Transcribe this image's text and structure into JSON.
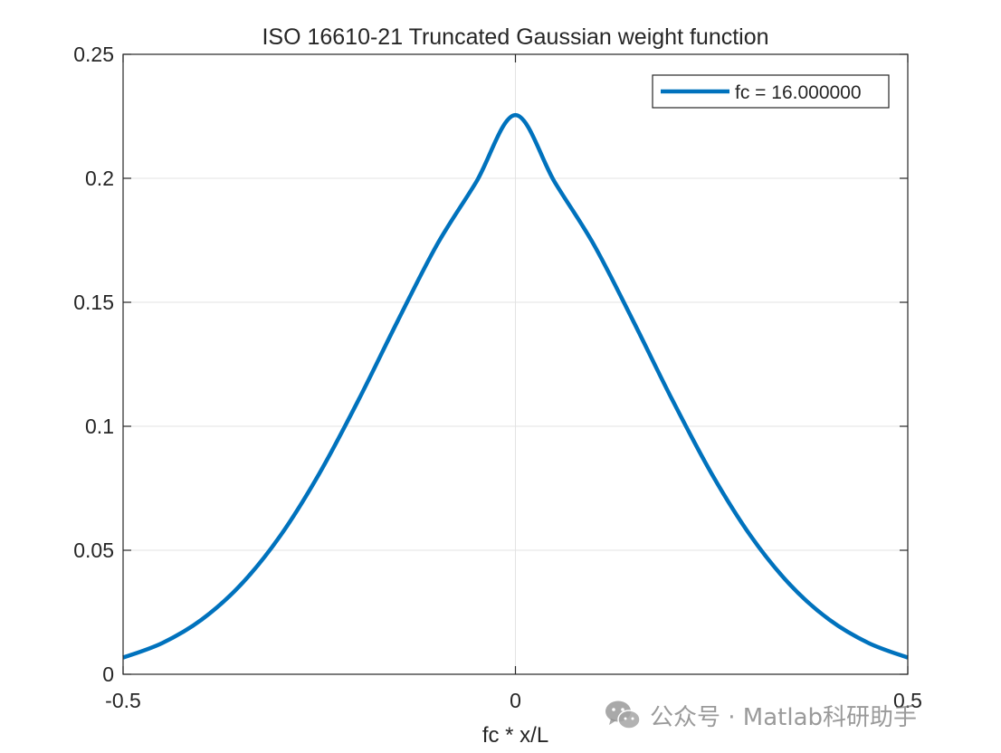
{
  "chart_data": {
    "type": "line",
    "title": "ISO 16610-21 Truncated Gaussian weight function",
    "xlabel": "fc * x/L",
    "ylabel": "",
    "xlim": [
      -0.5,
      0.5
    ],
    "ylim": [
      0,
      0.25
    ],
    "grid": true,
    "legend_location": "top-right",
    "x_ticks": [
      -0.5,
      0,
      0.5
    ],
    "x_tick_labels": [
      "-0.5",
      "0",
      "0.5"
    ],
    "y_ticks": [
      0,
      0.05,
      0.1,
      0.15,
      0.2,
      0.25
    ],
    "y_tick_labels": [
      "0",
      "0.05",
      "0.1",
      "0.15",
      "0.2",
      "0.25"
    ],
    "series": [
      {
        "name": "fc = 16.000000",
        "color": "#0072BD",
        "x": [
          -0.5,
          -0.45,
          -0.4,
          -0.35,
          -0.3,
          -0.25,
          -0.2,
          -0.15,
          -0.1,
          -0.05,
          0,
          0.05,
          0.1,
          0.15,
          0.2,
          0.25,
          0.3,
          0.35,
          0.4,
          0.45,
          0.5
        ],
        "y": [
          0.0067,
          0.0126,
          0.022,
          0.0361,
          0.0557,
          0.0809,
          0.1106,
          0.1425,
          0.1732,
          0.1985,
          0.2255,
          0.1985,
          0.1732,
          0.1425,
          0.1106,
          0.0809,
          0.0557,
          0.0361,
          0.022,
          0.0126,
          0.0067
        ]
      }
    ]
  },
  "watermark": {
    "icon": "wechat-icon",
    "text": "公众号 · Matlab科研助手"
  }
}
